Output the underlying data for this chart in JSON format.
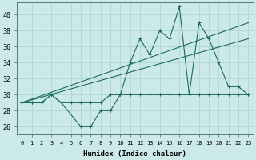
{
  "xlabel": "Humidex (Indice chaleur)",
  "background_color": "#cce9e9",
  "grid_color": "#b0d4d4",
  "line_color": "#1a6b5a",
  "xlim": [
    -0.5,
    23.5
  ],
  "ylim": [
    25.0,
    41.5
  ],
  "yticks": [
    26,
    28,
    30,
    32,
    34,
    36,
    38,
    40
  ],
  "xticks": [
    0,
    1,
    2,
    3,
    4,
    5,
    6,
    7,
    8,
    9,
    10,
    11,
    12,
    13,
    14,
    15,
    16,
    17,
    18,
    19,
    20,
    21,
    22,
    23
  ],
  "series1_x": [
    0,
    1,
    2,
    3,
    4,
    6,
    7,
    8,
    9,
    10,
    11,
    12,
    13,
    14,
    15,
    16,
    17,
    18,
    19,
    20,
    21,
    22,
    23
  ],
  "series1_y": [
    29,
    29,
    29,
    30,
    29,
    26,
    26,
    28,
    28,
    30,
    34,
    37,
    35,
    38,
    37,
    41,
    30,
    39,
    37,
    34,
    31,
    31,
    30
  ],
  "series2_x": [
    0,
    1,
    2,
    3,
    4,
    5,
    6,
    7,
    8,
    9,
    10,
    11,
    12,
    13,
    14,
    15,
    16,
    17,
    18,
    19,
    20,
    21,
    22,
    23
  ],
  "series2_y": [
    29,
    29,
    29,
    30,
    29,
    29,
    29,
    29,
    29,
    30,
    30,
    30,
    30,
    30,
    30,
    30,
    30,
    30,
    30,
    30,
    30,
    30,
    30,
    30
  ],
  "series3_x": [
    0,
    23
  ],
  "series3_y": [
    29,
    39
  ],
  "series4_x": [
    0,
    23
  ],
  "series4_y": [
    29,
    37
  ]
}
